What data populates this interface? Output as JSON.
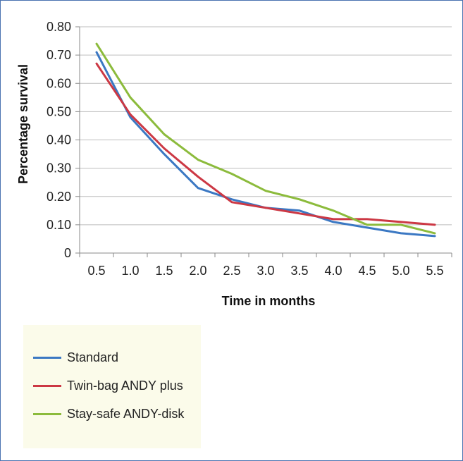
{
  "chart_data": {
    "type": "line",
    "xlabel": "Time in months",
    "ylabel": "Percentage survival",
    "categories": [
      "0.5",
      "1.0",
      "1.5",
      "2.0",
      "2.5",
      "3.0",
      "3.5",
      "4.0",
      "4.5",
      "5.0",
      "5.5"
    ],
    "y_ticks": [
      "0",
      "0.10",
      "0.20",
      "0.30",
      "0.40",
      "0.50",
      "0.60",
      "0.70",
      "0.80"
    ],
    "ylim": [
      0,
      0.8
    ],
    "grid": true,
    "legend_position": "bottom-left",
    "series": [
      {
        "name": "Standard",
        "color": "#3b78c3",
        "values": [
          0.71,
          0.48,
          0.35,
          0.23,
          0.19,
          0.16,
          0.15,
          0.11,
          0.09,
          0.07,
          0.06
        ]
      },
      {
        "name": "Twin-bag ANDY plus",
        "color": "#cc3844",
        "values": [
          0.67,
          0.49,
          0.37,
          0.27,
          0.18,
          0.16,
          0.14,
          0.12,
          0.12,
          0.11,
          0.1
        ]
      },
      {
        "name": "Stay-safe ANDY-disk",
        "color": "#8cbb3c",
        "values": [
          0.74,
          0.55,
          0.42,
          0.33,
          0.28,
          0.22,
          0.19,
          0.15,
          0.1,
          0.1,
          0.07
        ]
      }
    ]
  }
}
